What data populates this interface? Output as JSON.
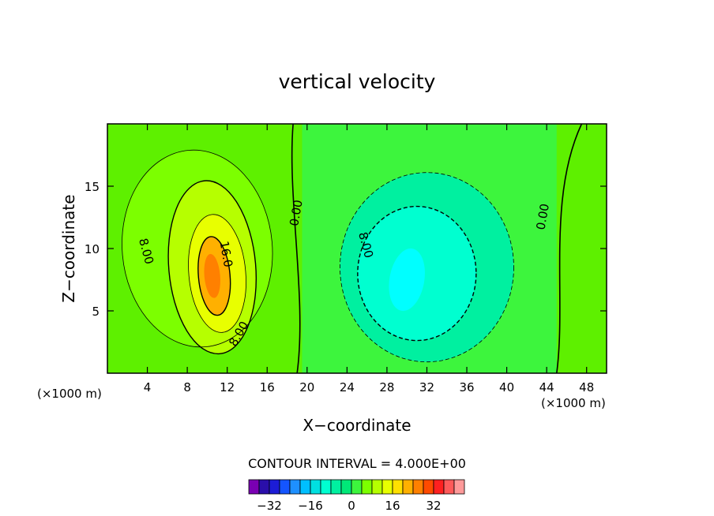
{
  "chart_data": {
    "type": "heatmap",
    "title": "vertical velocity",
    "xlabel": "X−coordinate",
    "ylabel": "Z−coordinate",
    "x_unit_left": "(×1000 m)",
    "x_unit_right": "(×1000 m)",
    "xlim": [
      0,
      50
    ],
    "ylim": [
      0,
      20
    ],
    "x_ticks": [
      4,
      8,
      12,
      16,
      20,
      24,
      28,
      32,
      36,
      40,
      44,
      48
    ],
    "y_ticks": [
      5,
      10,
      15
    ],
    "contour_interval_text": "CONTOUR INTERVAL = 4.000E+00",
    "contour_labels": [
      {
        "text": "8.00",
        "x": 3.5,
        "y": 9.7,
        "rot": 75
      },
      {
        "text": "16.0",
        "x": 11.5,
        "y": 9.5,
        "rot": 80
      },
      {
        "text": "8.00",
        "x": 13.5,
        "y": 3.0,
        "rot": -60
      },
      {
        "text": "0.00",
        "x": 19.3,
        "y": 12.8,
        "rot": -80
      },
      {
        "text": "8.00",
        "x": 25.5,
        "y": 10.2,
        "rot": 75
      },
      {
        "text": "0.00",
        "x": 44.0,
        "y": 12.5,
        "rot": -80
      }
    ],
    "colorbar": {
      "colors": [
        "#7a00b3",
        "#2a0faa",
        "#1c1cd6",
        "#1455ff",
        "#1e90ff",
        "#00bfff",
        "#00e0e0",
        "#00ffd0",
        "#00f0a0",
        "#00e878",
        "#3df53d",
        "#7cff00",
        "#b6ff00",
        "#e8ff00",
        "#ffe000",
        "#ffb000",
        "#ff8000",
        "#ff4a00",
        "#ff2020",
        "#ff5a5a",
        "#ff9a9a"
      ],
      "ticks": [
        {
          "label": "−32",
          "value": -32
        },
        {
          "label": "−16",
          "value": -16
        },
        {
          "label": "0",
          "value": 0
        },
        {
          "label": "16",
          "value": 16
        },
        {
          "label": "32",
          "value": 32
        }
      ],
      "min": -40,
      "max": 44
    }
  }
}
